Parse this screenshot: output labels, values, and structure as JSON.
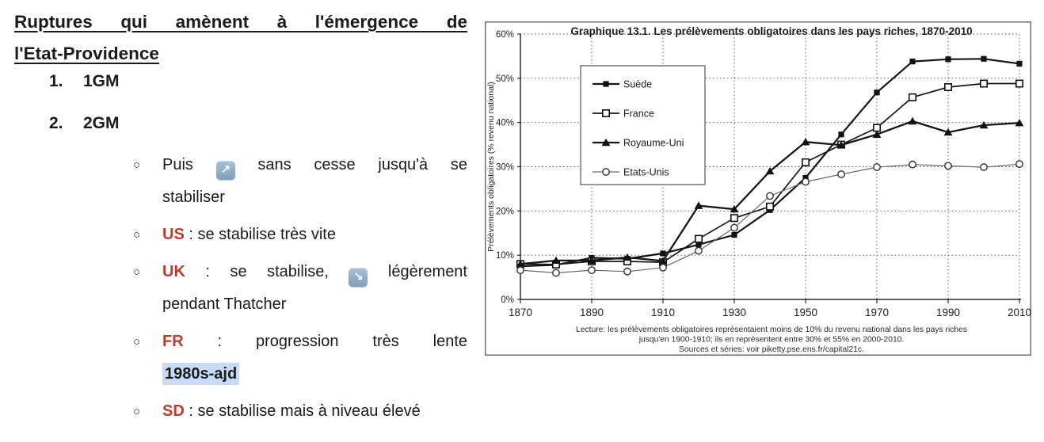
{
  "colors": {
    "accent_red": "#c23b2a",
    "highlight_blue": "#c9daf8",
    "text": "#1b1b1b"
  },
  "notes": {
    "heading_lines": [
      "Ruptures qui amènent à l'émergence de",
      "l'Etat-Providence"
    ],
    "numbered_items": [
      {
        "number": "1.",
        "label": "1GM"
      },
      {
        "number": "2.",
        "label": "2GM"
      }
    ],
    "bullets": [
      {
        "lines": [
          [
            {
              "t": "text",
              "v": "Puis "
            },
            {
              "t": "emoji",
              "v": "↗",
              "name": "arrow-up-right-emoji"
            },
            {
              "t": "text",
              "v": " sans cesse jusqu'à se"
            }
          ],
          [
            {
              "t": "text",
              "v": "stabiliser"
            }
          ]
        ]
      },
      {
        "lines": [
          [
            {
              "t": "red",
              "v": "US"
            },
            {
              "t": "text",
              "v": " : se stabilise très vite"
            }
          ]
        ]
      },
      {
        "lines": [
          [
            {
              "t": "red",
              "v": "UK"
            },
            {
              "t": "text",
              "v": " : se stabilise, "
            },
            {
              "t": "emoji",
              "v": "↘",
              "name": "arrow-down-right-emoji"
            },
            {
              "t": "text",
              "v": " légèrement"
            }
          ],
          [
            {
              "t": "text",
              "v": "pendant Thatcher"
            }
          ]
        ]
      },
      {
        "lines": [
          [
            {
              "t": "red",
              "v": "FR"
            },
            {
              "t": "text",
              "v": " : progression très lente"
            }
          ],
          [
            {
              "t": "hl",
              "v": "1980s-ajd"
            }
          ]
        ]
      },
      {
        "lines": [
          [
            {
              "t": "red",
              "v": "SD"
            },
            {
              "t": "text",
              "v": " : se stabilise mais à niveau élevé"
            }
          ]
        ]
      }
    ]
  },
  "chart_data": {
    "type": "line",
    "title": "Graphique 13.1. Les prélèvements obligatoires dans les pays riches, 1870-2010",
    "ylabel": "Prélèvements obligatoires (% revenu national)",
    "xlabel": "",
    "xlim": [
      1870,
      2010
    ],
    "ylim": [
      0,
      60
    ],
    "grid": "dotted",
    "legend_position": "upper-left-inside",
    "x": [
      1870,
      1880,
      1890,
      1900,
      1910,
      1920,
      1930,
      1940,
      1950,
      1960,
      1970,
      1980,
      1990,
      2000,
      2010
    ],
    "x_ticks": [
      1870,
      1890,
      1910,
      1930,
      1950,
      1970,
      1990,
      2010
    ],
    "x_tick_labels": [
      "1870",
      "1890",
      "1910",
      "1930",
      "1950",
      "1970",
      "1990",
      "2010"
    ],
    "x_gridlines": [
      1890,
      1910,
      1930,
      1950,
      1970,
      1990,
      2010
    ],
    "y_ticks": [
      0,
      10,
      20,
      30,
      40,
      50,
      60
    ],
    "y_tick_labels": [
      "0%",
      "10%",
      "20%",
      "30%",
      "40%",
      "50%",
      "60%"
    ],
    "series": [
      {
        "name": "Suède",
        "marker": "filled-square",
        "line_color": "#161616",
        "line_width": 2.2,
        "values": [
          7.5,
          7.8,
          9.4,
          9.2,
          10.4,
          12.4,
          14.6,
          20.2,
          27.5,
          37.3,
          46.8,
          53.8,
          54.3,
          54.4,
          53.3
        ]
      },
      {
        "name": "France",
        "marker": "open-square",
        "line_color": "#161616",
        "line_width": 1.7,
        "values": [
          8.0,
          7.9,
          8.6,
          8.6,
          8.4,
          13.7,
          18.4,
          21.0,
          31.0,
          35.0,
          38.8,
          45.7,
          48.0,
          48.8,
          48.8
        ]
      },
      {
        "name": "Royaume-Uni",
        "marker": "filled-triangle",
        "line_color": "#161616",
        "line_width": 2.3,
        "values": [
          8.0,
          8.8,
          8.8,
          9.5,
          8.7,
          21.2,
          20.4,
          29.0,
          35.6,
          34.9,
          37.3,
          40.3,
          37.8,
          39.4,
          39.9
        ]
      },
      {
        "name": "Etats-Unis",
        "marker": "open-circle",
        "line_color": "#6a6a6a",
        "line_width": 1.2,
        "values": [
          6.6,
          6.0,
          6.6,
          6.3,
          7.2,
          11.0,
          16.2,
          23.4,
          26.6,
          28.3,
          29.9,
          30.5,
          30.2,
          29.9,
          30.6
        ]
      }
    ],
    "caption_lines": [
      "Lecture: les prélèvements obligatoires représentaient moins de 10% du revenu national dans les pays riches",
      "jusqu'en 1900-1910; ils en représentent entre 30% et 55% en 2000-2010.",
      "Sources et séries: voir piketty.pse.ens.fr/capital21c."
    ]
  }
}
